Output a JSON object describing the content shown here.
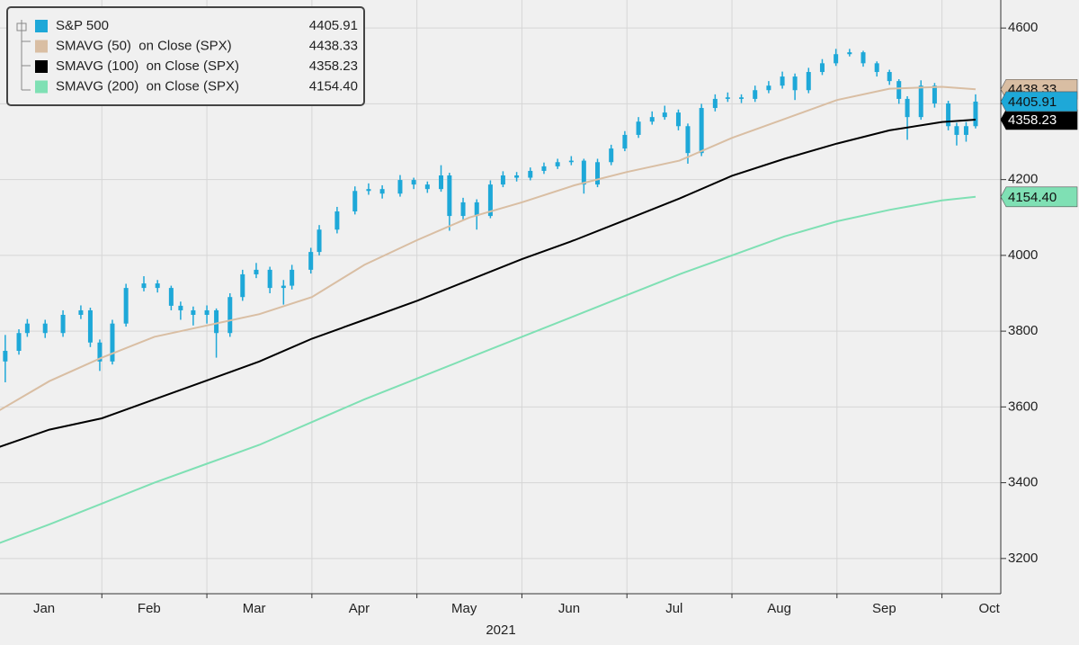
{
  "chart_data": {
    "type": "candlestick",
    "xlabel": "2021",
    "xlim": [
      0.03,
      9.56
    ],
    "ylim": [
      3107,
      4674
    ],
    "xticks": [
      {
        "value": 0,
        "label": "Jan"
      },
      {
        "value": 1,
        "label": "Feb"
      },
      {
        "value": 2,
        "label": "Mar"
      },
      {
        "value": 3,
        "label": "Apr"
      },
      {
        "value": 4,
        "label": "May"
      },
      {
        "value": 5,
        "label": "Jun"
      },
      {
        "value": 6,
        "label": "Jul"
      },
      {
        "value": 7,
        "label": "Aug"
      },
      {
        "value": 8,
        "label": "Sep"
      },
      {
        "value": 9,
        "label": "Oct"
      }
    ],
    "yticks": [
      3200,
      3400,
      3600,
      3800,
      4000,
      4200,
      4400,
      4600
    ],
    "grid": true,
    "series": [
      {
        "name": "S&P 500",
        "type": "candlestick",
        "color": "#1ea8d8",
        "x": [
          0.08,
          0.21,
          0.29,
          0.46,
          0.63,
          0.8,
          0.89,
          0.98,
          1.1,
          1.23,
          1.4,
          1.53,
          1.66,
          1.75,
          1.87,
          2.0,
          2.09,
          2.22,
          2.34,
          2.47,
          2.6,
          2.73,
          2.81,
          2.99,
          3.07,
          3.24,
          3.41,
          3.54,
          3.67,
          3.84,
          3.97,
          4.1,
          4.23,
          4.31,
          4.44,
          4.57,
          4.7,
          4.82,
          4.95,
          5.08,
          5.21,
          5.34,
          5.47,
          5.59,
          5.72,
          5.85,
          5.98,
          6.11,
          6.24,
          6.36,
          6.49,
          6.58,
          6.71,
          6.84,
          6.96,
          7.09,
          7.22,
          7.35,
          7.48,
          7.6,
          7.73,
          7.86,
          7.99,
          8.12,
          8.25,
          8.38,
          8.5,
          8.59,
          8.67,
          8.8,
          8.93,
          9.06,
          9.14,
          9.23,
          9.32
        ],
        "open": [
          3720,
          3748,
          3795,
          3820,
          3795,
          3843,
          3855,
          3770,
          3720,
          3820,
          3914,
          3926,
          3914,
          3867,
          3855,
          3843,
          3855,
          3795,
          3890,
          3950,
          3962,
          3914,
          3920,
          3962,
          4009,
          4068,
          4116,
          4170,
          4175,
          4163,
          4199,
          4187,
          4175,
          4211,
          4104,
          4140,
          4104,
          4187,
          4211,
          4205,
          4223,
          4235,
          4246,
          4250,
          4187,
          4246,
          4282,
          4318,
          4353,
          4365,
          4377,
          4341,
          4270,
          4389,
          4413,
          4417,
          4413,
          4436,
          4448,
          4472,
          4436,
          4484,
          4507,
          4531,
          4536,
          4507,
          4484,
          4460,
          4413,
          4365,
          4448,
          4401,
          4341,
          4318,
          4341
        ],
        "high": [
          3790,
          3805,
          3832,
          3830,
          3855,
          3868,
          3862,
          3778,
          3830,
          3925,
          3945,
          3935,
          3920,
          3878,
          3865,
          3868,
          3860,
          3900,
          3962,
          3980,
          3970,
          3935,
          3975,
          4020,
          4080,
          4128,
          4182,
          4190,
          4185,
          4212,
          4205,
          4195,
          4238,
          4218,
          4152,
          4148,
          4198,
          4222,
          4220,
          4232,
          4245,
          4255,
          4262,
          4255,
          4255,
          4292,
          4328,
          4365,
          4380,
          4395,
          4385,
          4348,
          4400,
          4425,
          4430,
          4425,
          4448,
          4460,
          4485,
          4480,
          4495,
          4518,
          4545,
          4545,
          4540,
          4512,
          4490,
          4465,
          4420,
          4462,
          4455,
          4408,
          4350,
          4352,
          4425
        ],
        "low": [
          3665,
          3738,
          3785,
          3782,
          3785,
          3832,
          3758,
          3695,
          3712,
          3812,
          3905,
          3902,
          3855,
          3830,
          3815,
          3820,
          3730,
          3785,
          3880,
          3940,
          3900,
          3870,
          3910,
          3952,
          4000,
          4058,
          4108,
          4160,
          4150,
          4155,
          4175,
          4165,
          4168,
          4065,
          4095,
          4068,
          4098,
          4180,
          4195,
          4198,
          4215,
          4228,
          4238,
          4163,
          4180,
          4238,
          4275,
          4310,
          4345,
          4358,
          4330,
          4242,
          4262,
          4380,
          4405,
          4402,
          4405,
          4428,
          4440,
          4410,
          4428,
          4476,
          4500,
          4525,
          4498,
          4472,
          4450,
          4400,
          4305,
          4358,
          4390,
          4330,
          4290,
          4300,
          4335
        ],
        "close": [
          3748,
          3795,
          3820,
          3795,
          3843,
          3855,
          3770,
          3720,
          3820,
          3914,
          3926,
          3914,
          3867,
          3855,
          3843,
          3855,
          3795,
          3890,
          3950,
          3962,
          3914,
          3920,
          3962,
          4009,
          4068,
          4116,
          4170,
          4175,
          4163,
          4199,
          4187,
          4175,
          4211,
          4104,
          4140,
          4104,
          4187,
          4211,
          4205,
          4223,
          4235,
          4246,
          4250,
          4187,
          4246,
          4282,
          4318,
          4353,
          4365,
          4377,
          4341,
          4270,
          4389,
          4413,
          4417,
          4413,
          4436,
          4448,
          4472,
          4436,
          4484,
          4507,
          4531,
          4536,
          4507,
          4484,
          4460,
          4413,
          4365,
          4448,
          4401,
          4341,
          4318,
          4341,
          4405.91
        ]
      },
      {
        "name": "SMAVG (50)  on Close (SPX)",
        "type": "line",
        "color": "#d9bea3",
        "x": [
          0,
          0.5,
          1,
          1.5,
          2,
          2.5,
          3,
          3.5,
          4,
          4.5,
          5,
          5.5,
          6,
          6.5,
          7,
          7.5,
          8,
          8.5,
          9,
          9.32
        ],
        "values": [
          3587,
          3668,
          3730,
          3785,
          3815,
          3845,
          3890,
          3975,
          4040,
          4100,
          4140,
          4185,
          4220,
          4250,
          4310,
          4360,
          4410,
          4440,
          4445,
          4438.33
        ]
      },
      {
        "name": "SMAVG (100)  on Close (SPX)",
        "type": "line",
        "color": "#000000",
        "x": [
          0,
          0.5,
          1,
          1.5,
          2,
          2.5,
          3,
          3.5,
          4,
          4.5,
          5,
          5.5,
          6,
          6.5,
          7,
          7.5,
          8,
          8.5,
          9,
          9.32
        ],
        "values": [
          3492,
          3540,
          3570,
          3620,
          3670,
          3720,
          3780,
          3830,
          3880,
          3935,
          3990,
          4040,
          4095,
          4150,
          4210,
          4255,
          4295,
          4330,
          4352,
          4358.23
        ]
      },
      {
        "name": "SMAVG (200)  on Close (SPX)",
        "type": "line",
        "color": "#7fe0b4",
        "x": [
          0,
          0.5,
          1,
          1.5,
          2,
          2.5,
          3,
          3.5,
          4,
          4.5,
          5,
          5.5,
          6,
          6.5,
          7,
          7.5,
          8,
          8.5,
          9,
          9.32
        ],
        "values": [
          3238,
          3290,
          3345,
          3400,
          3450,
          3500,
          3560,
          3620,
          3675,
          3730,
          3785,
          3840,
          3895,
          3950,
          4000,
          4050,
          4090,
          4120,
          4145,
          4154.4
        ],
        "value_labels": [
          null,
          null,
          null,
          null,
          null,
          null,
          null,
          null,
          null,
          null,
          null,
          null,
          null,
          null,
          null,
          null,
          null,
          null,
          null,
          "4154.40"
        ]
      }
    ]
  }
}
